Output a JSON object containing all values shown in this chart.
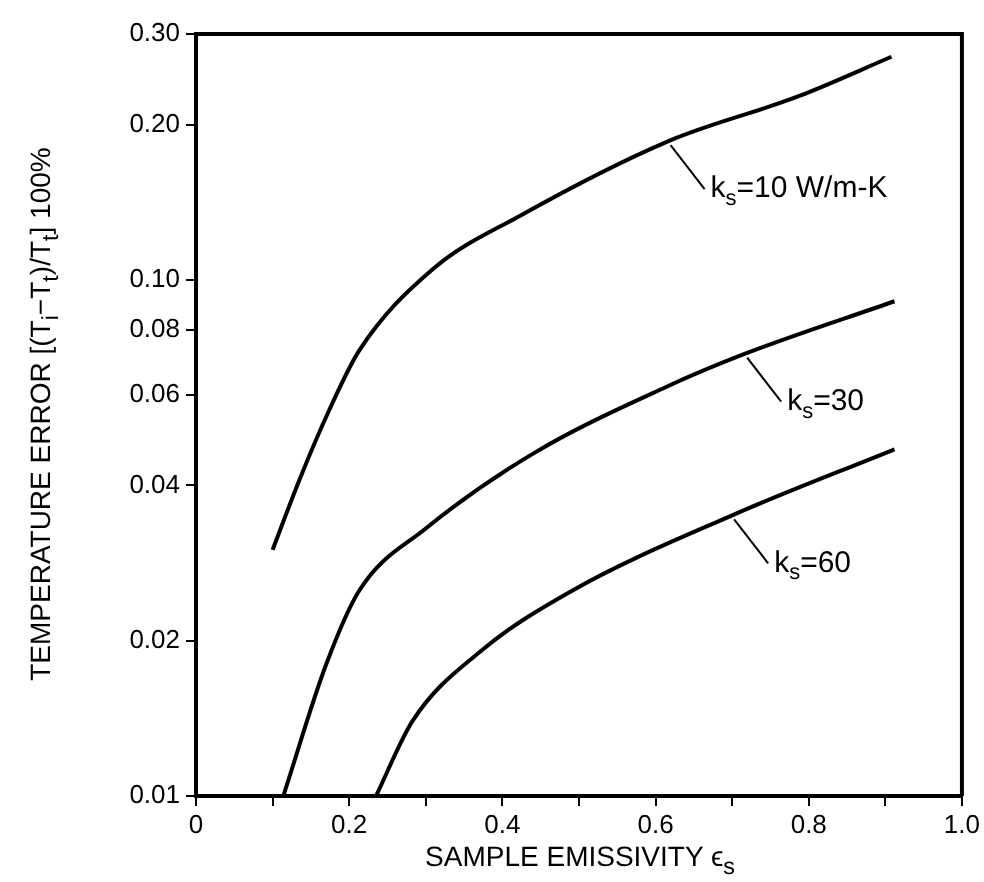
{
  "chart_data": {
    "type": "line",
    "xlabel": "SAMPLE EMISSIVITY ϵ$_{s}$",
    "ylabel": "TEMPERATURE ERROR [(T$_{i}$−T$_{t}$)/T$_{t}$] 100%",
    "log": "y",
    "xlim": [
      0,
      1
    ],
    "ylim": [
      0.01,
      0.3
    ],
    "xticks": [
      0,
      {
        "value": 0.1,
        "label": null
      },
      0.2,
      {
        "value": 0.3,
        "label": null
      },
      0.4,
      {
        "value": 0.5,
        "label": null
      },
      0.6,
      {
        "value": 0.7,
        "label": null
      },
      0.8,
      {
        "value": 0.9,
        "label": null
      },
      {
        "value": 1,
        "label": "1.0"
      }
    ],
    "yticks": [
      0.01,
      0.02,
      0.04,
      0.06,
      0.08,
      {
        "value": 0.1,
        "label": "0.10"
      },
      {
        "value": 0.2,
        "label": "0.20"
      },
      {
        "value": 0.3,
        "label": "0.30"
      }
    ],
    "grid": false,
    "legend": false,
    "marker": "none",
    "line_style": "solid",
    "series": [
      {
        "name": "k$_{s}$=10 W/m-K",
        "color": "#000000",
        "x": [
          0.1,
          0.135,
          0.174,
          0.213,
          0.309,
          0.422,
          0.617,
          0.786,
          0.908
        ],
        "values": [
          0.03,
          0.041,
          0.056,
          0.073,
          0.105,
          0.133,
          0.186,
          0.227,
          0.271
        ]
      },
      {
        "name": "k$_{s}$=30",
        "color": "#000000",
        "x": [
          0.114,
          0.17,
          0.213,
          0.3,
          0.439,
          0.613,
          0.717,
          0.912
        ],
        "values": [
          0.01,
          0.018,
          0.025,
          0.033,
          0.046,
          0.062,
          0.072,
          0.091
        ]
      },
      {
        "name": "k$_{s}$=60",
        "color": "#000000",
        "x": [
          0.235,
          0.283,
          0.37,
          0.491,
          0.7,
          0.912
        ],
        "values": [
          0.01,
          0.014,
          0.019,
          0.025,
          0.035,
          0.047
        ]
      }
    ]
  }
}
